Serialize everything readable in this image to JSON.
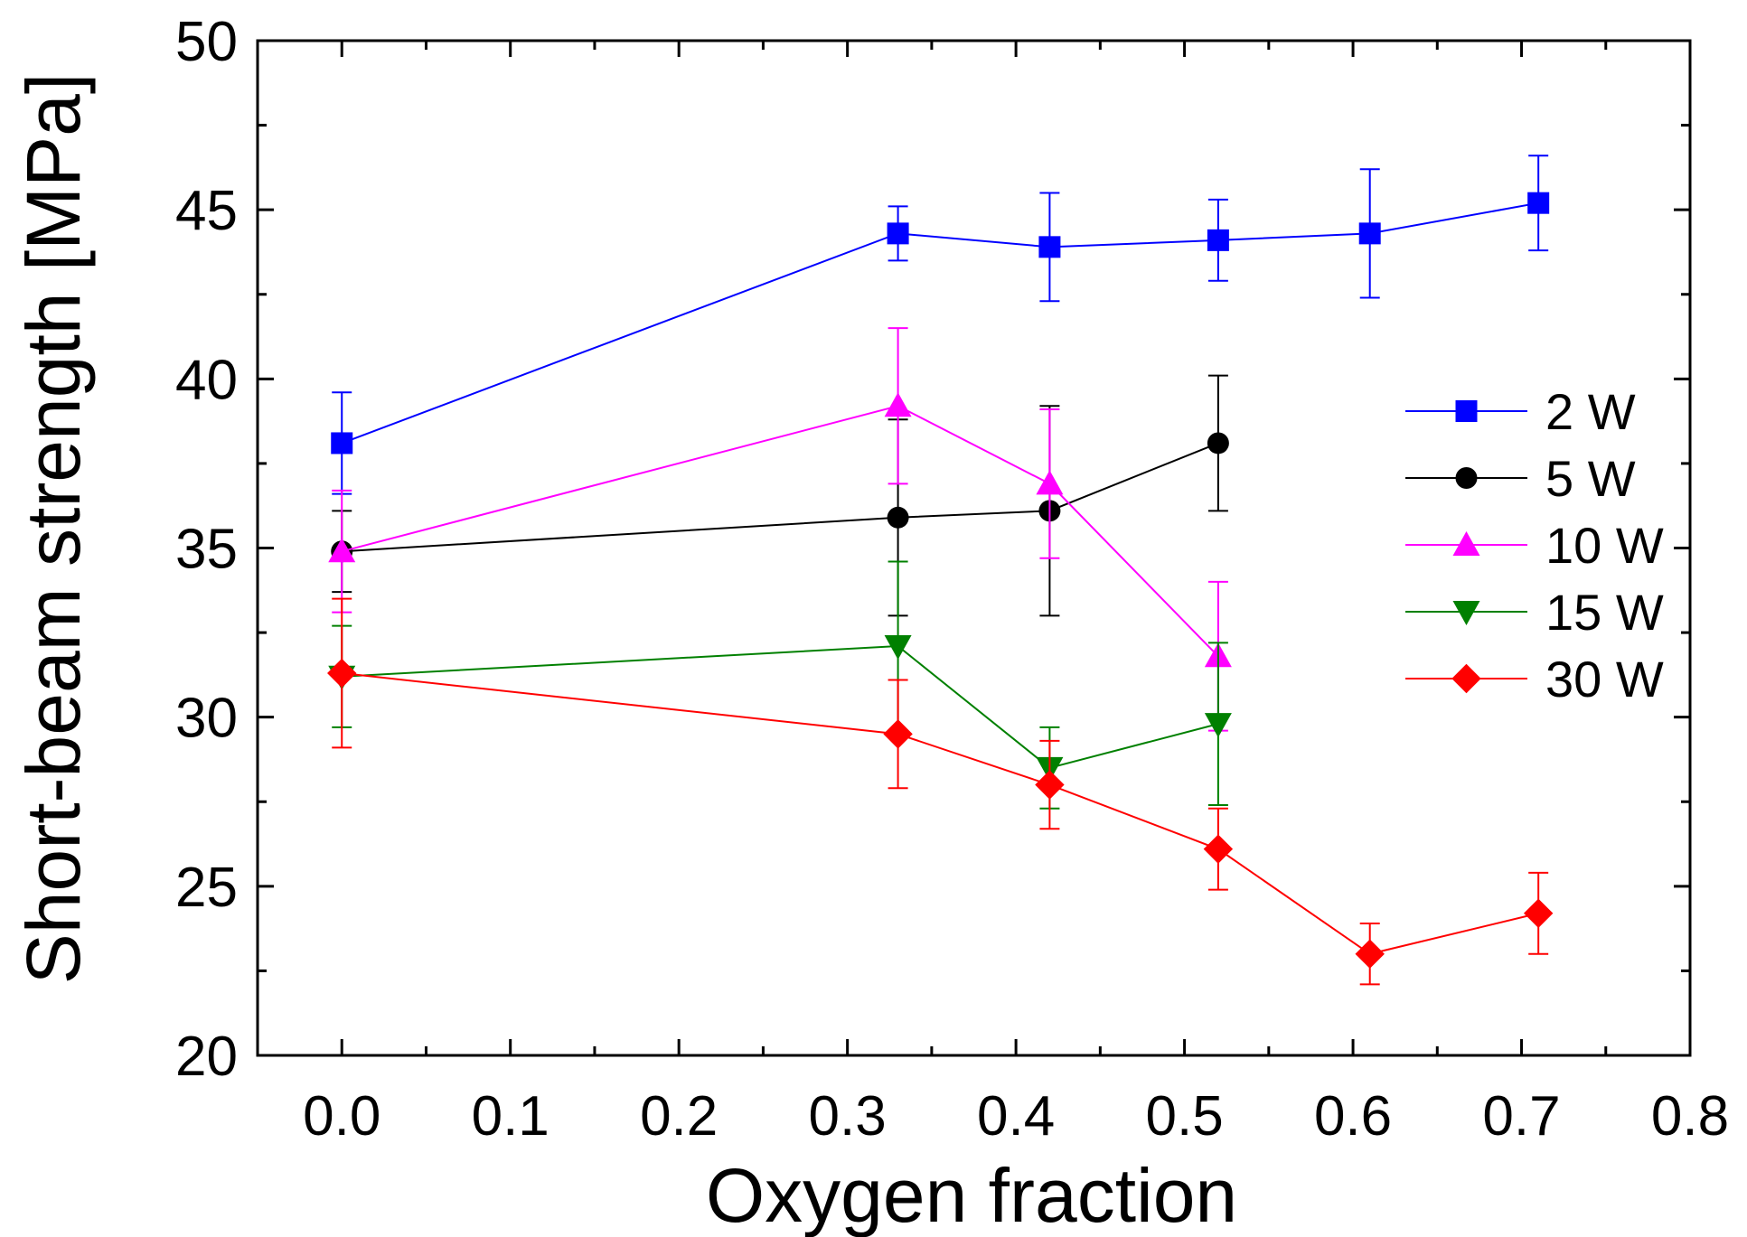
{
  "chart_data": {
    "type": "line",
    "title": "",
    "xlabel": "Oxygen fraction",
    "ylabel": "Short-beam strength [MPa]",
    "xlim": [
      -0.05,
      0.8
    ],
    "ylim": [
      20,
      50
    ],
    "x_ticks": [
      0.0,
      0.1,
      0.2,
      0.3,
      0.4,
      0.5,
      0.6,
      0.7,
      0.8
    ],
    "x_tick_labels": [
      "0.0",
      "0.1",
      "0.2",
      "0.3",
      "0.4",
      "0.5",
      "0.6",
      "0.7",
      "0.8"
    ],
    "y_ticks": [
      20,
      25,
      30,
      35,
      40,
      45,
      50
    ],
    "y_tick_labels": [
      "20",
      "25",
      "30",
      "35",
      "40",
      "45",
      "50"
    ],
    "grid": false,
    "legend_position": "right",
    "series": [
      {
        "name": "2 W",
        "color": "#0000ff",
        "marker": "square",
        "x": [
          0.0,
          0.33,
          0.42,
          0.52,
          0.61,
          0.71
        ],
        "y": [
          38.1,
          44.3,
          43.9,
          44.1,
          44.3,
          45.2
        ],
        "err": [
          1.5,
          0.8,
          1.6,
          1.2,
          1.9,
          1.4
        ]
      },
      {
        "name": "5 W",
        "color": "#000000",
        "marker": "circle",
        "x": [
          0.0,
          0.33,
          0.42,
          0.52
        ],
        "y": [
          34.9,
          35.9,
          36.1,
          38.1
        ],
        "err": [
          1.2,
          2.9,
          3.1,
          2.0
        ]
      },
      {
        "name": "10 W",
        "color": "#ff00ff",
        "marker": "triangle-up",
        "x": [
          0.0,
          0.33,
          0.42,
          0.52
        ],
        "y": [
          34.9,
          39.2,
          36.9,
          31.8
        ],
        "err": [
          1.8,
          2.3,
          2.2,
          2.2
        ]
      },
      {
        "name": "15 W",
        "color": "#008000",
        "marker": "triangle-down",
        "x": [
          0.0,
          0.33,
          0.42,
          0.52
        ],
        "y": [
          31.2,
          32.1,
          28.5,
          29.8
        ],
        "err": [
          1.5,
          2.5,
          1.2,
          2.4
        ]
      },
      {
        "name": "30 W",
        "color": "#ff0000",
        "marker": "diamond",
        "x": [
          0.0,
          0.33,
          0.42,
          0.52,
          0.61,
          0.71
        ],
        "y": [
          31.3,
          29.5,
          28.0,
          26.1,
          23.0,
          24.2
        ],
        "err": [
          2.2,
          1.6,
          1.3,
          1.2,
          0.9,
          1.2
        ]
      }
    ]
  }
}
